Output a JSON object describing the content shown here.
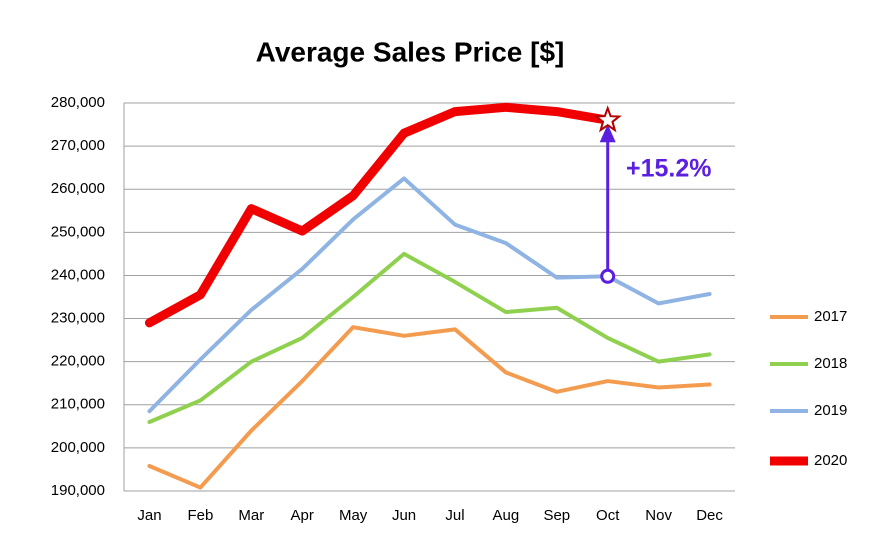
{
  "chart_data": {
    "type": "line",
    "title": "Average Sales Price [$]",
    "categories": [
      "Jan",
      "Feb",
      "Mar",
      "Apr",
      "May",
      "Jun",
      "Jul",
      "Aug",
      "Sep",
      "Oct",
      "Nov",
      "Dec"
    ],
    "series": [
      {
        "name": "2017",
        "color": "#f39c50",
        "width": 4,
        "values": [
          195800,
          190800,
          204000,
          215500,
          228000,
          226000,
          227500,
          217500,
          213000,
          215500,
          214000,
          214700
        ]
      },
      {
        "name": "2018",
        "color": "#8fd14f",
        "width": 4,
        "values": [
          206000,
          211000,
          220000,
          225500,
          235000,
          245000,
          238500,
          231500,
          232500,
          225500,
          220000,
          221700
        ]
      },
      {
        "name": "2019",
        "color": "#8fb4e3",
        "width": 4,
        "values": [
          208500,
          220500,
          232000,
          241500,
          253000,
          262500,
          251800,
          247500,
          239500,
          239800,
          233500,
          235700
        ]
      },
      {
        "name": "2020",
        "color": "#f00000",
        "width": 9,
        "values": [
          229000,
          235500,
          255500,
          250300,
          258500,
          273000,
          278000,
          279000,
          278000,
          276000,
          null,
          null
        ]
      }
    ],
    "ylim": [
      190000,
      280000
    ],
    "yticks": [
      {
        "value": 190000,
        "label": "190,000"
      },
      {
        "value": 200000,
        "label": "200,000"
      },
      {
        "value": 210000,
        "label": "210,000"
      },
      {
        "value": 220000,
        "label": "220,000"
      },
      {
        "value": 230000,
        "label": "230,000"
      },
      {
        "value": 240000,
        "label": "240,000"
      },
      {
        "value": 250000,
        "label": "250,000"
      },
      {
        "value": 260000,
        "label": "260,000"
      },
      {
        "value": 270000,
        "label": "270,000"
      },
      {
        "value": 280000,
        "label": "280,000"
      }
    ],
    "grid": true,
    "legend": "right",
    "annotation": "+15.2%"
  }
}
